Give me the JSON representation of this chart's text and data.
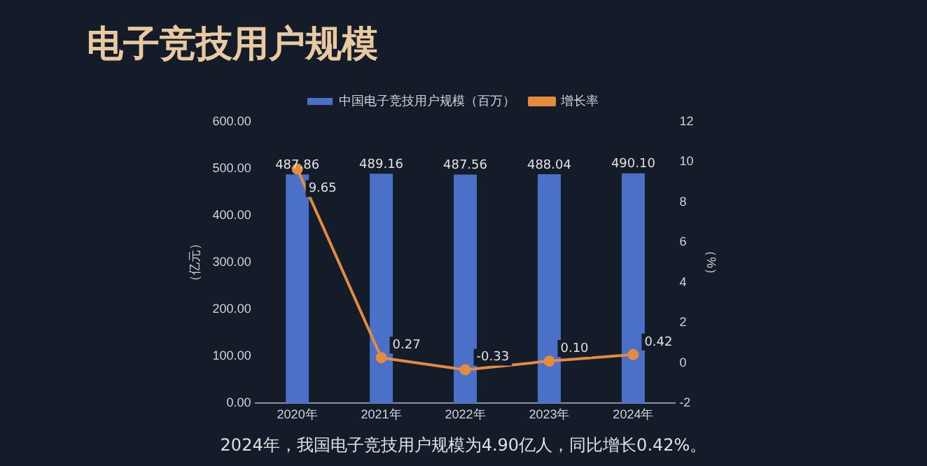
{
  "chart_data": {
    "type": "bar",
    "title": "电子竞技用户规模",
    "categories": [
      "2020年",
      "2021年",
      "2022年",
      "2023年",
      "2024年"
    ],
    "series": [
      {
        "name": "中国电子竞技用户规模（百万）",
        "color": "#4a70c8",
        "values": [
          487.86,
          489.16,
          487.56,
          488.04,
          490.1
        ],
        "value_labels": [
          "487.86",
          "489.16",
          "487.56",
          "488.04",
          "490.10"
        ]
      },
      {
        "name": "增长率",
        "type": "line",
        "axis": "y2",
        "color": "#e38b3f",
        "values": [
          9.65,
          0.27,
          -0.33,
          0.1,
          0.42
        ],
        "value_labels": [
          "9.65",
          "0.27",
          "-0.33",
          "0.10",
          "0.42"
        ]
      }
    ],
    "ylabel": "（亿元）",
    "y2label": "（%）",
    "ylim": [
      0,
      600
    ],
    "yticks": [
      {
        "value": 0,
        "label": "0.00"
      },
      {
        "value": 100,
        "label": "100.00"
      },
      {
        "value": 200,
        "label": "200.00"
      },
      {
        "value": 300,
        "label": "300.00"
      },
      {
        "value": 400,
        "label": "400.00"
      },
      {
        "value": 500,
        "label": "500.00"
      },
      {
        "value": 600,
        "label": "600.00"
      }
    ],
    "y2lim": [
      -2,
      12
    ],
    "y2ticks": [
      -2,
      0,
      2,
      4,
      6,
      8,
      10,
      12
    ],
    "legend": "top",
    "grid": false,
    "marker": "circle",
    "annotations": [
      "2024年，我国电子竞技用户规模为4.90亿人，同比增长0.42%。"
    ]
  }
}
